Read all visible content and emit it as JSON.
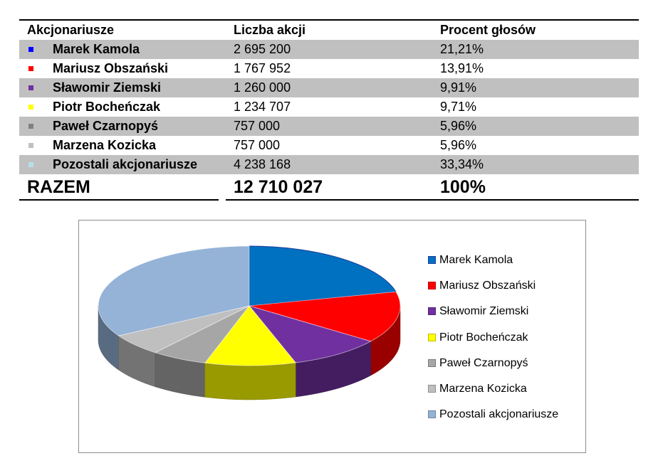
{
  "table": {
    "headers": [
      "Akcjonariusze",
      "Liczba akcji",
      "Procent głosów"
    ],
    "rows": [
      {
        "name": "Marek Kamola",
        "shares": "2 695 200",
        "percent": "21,21%",
        "color": "#0000ff"
      },
      {
        "name": "Mariusz Obszański",
        "shares": "1 767 952",
        "percent": "13,91%",
        "color": "#ff0000"
      },
      {
        "name": "Sławomir Ziemski",
        "shares": "1 260 000",
        "percent": "9,91%",
        "color": "#7030a0"
      },
      {
        "name": "Piotr Bocheńczak",
        "shares": "1 234 707",
        "percent": "9,71%",
        "color": "#ffff00"
      },
      {
        "name": "Paweł Czarnopyś",
        "shares": "757 000",
        "percent": "5,96%",
        "color": "#808080"
      },
      {
        "name": "Marzena Kozicka",
        "shares": "757 000",
        "percent": "5,96%",
        "color": "#c0c0c0"
      },
      {
        "name": "Pozostali akcjonariusze",
        "shares": "4 238 168",
        "percent": "33,34%",
        "color": "#b7dee8"
      }
    ],
    "total": {
      "label": "RAZEM",
      "shares": "12 710 027",
      "percent": "100%"
    }
  },
  "chart_data": {
    "type": "pie",
    "style": "3d",
    "categories": [
      "Marek Kamola",
      "Mariusz Obszański",
      "Sławomir Ziemski",
      "Piotr Bocheńczak",
      "Paweł Czarnopyś",
      "Marzena Kozicka",
      "Pozostali akcjonariusze"
    ],
    "values": [
      21.21,
      13.91,
      9.91,
      9.71,
      5.96,
      5.96,
      33.34
    ],
    "colors": [
      "#0070c0",
      "#ff0000",
      "#7030a0",
      "#ffff00",
      "#a6a6a6",
      "#bfbfbf",
      "#95b3d7"
    ],
    "legend_position": "right"
  }
}
